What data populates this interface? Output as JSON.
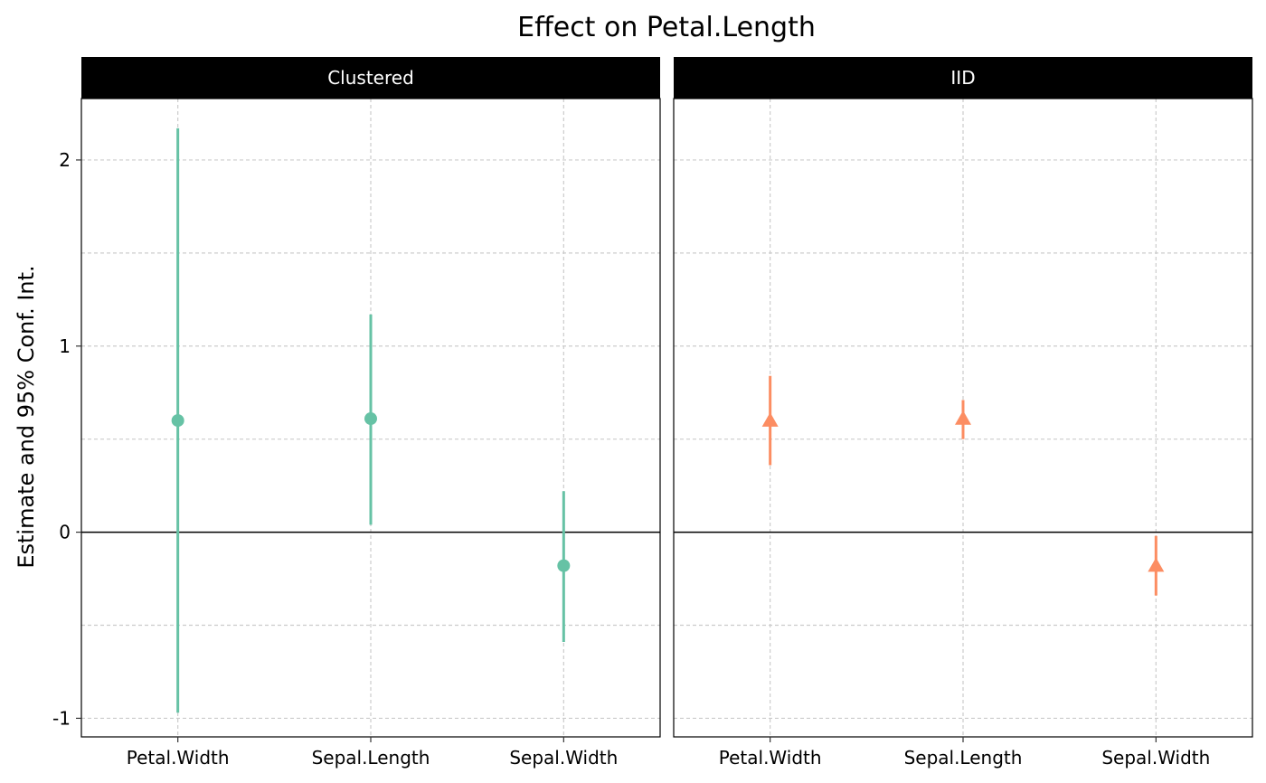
{
  "chart_data": {
    "type": "pointrange",
    "title": "Effect on Petal.Length",
    "ylabel": "Estimate and 95% Conf. Int.",
    "xlabel": "",
    "ylim": [
      -1.1,
      2.33
    ],
    "yticks": [
      -1,
      0,
      1,
      2
    ],
    "ytick_labels": [
      "-1",
      "0",
      "1",
      "2"
    ],
    "grid": true,
    "reference_line": 0,
    "categories": [
      "Petal.Width",
      "Sepal.Length",
      "Sepal.Width"
    ],
    "panels": [
      {
        "name": "Clustered",
        "color": "#66c2a5",
        "marker": "circle",
        "estimates": [
          0.6,
          0.61,
          -0.18
        ],
        "lower": [
          -0.97,
          0.04,
          -0.59
        ],
        "upper": [
          2.17,
          1.17,
          0.22
        ]
      },
      {
        "name": "IID",
        "color": "#fc8d62",
        "marker": "triangle",
        "estimates": [
          0.6,
          0.61,
          -0.18
        ],
        "lower": [
          0.36,
          0.5,
          -0.34
        ],
        "upper": [
          0.84,
          0.71,
          -0.02
        ]
      }
    ]
  }
}
